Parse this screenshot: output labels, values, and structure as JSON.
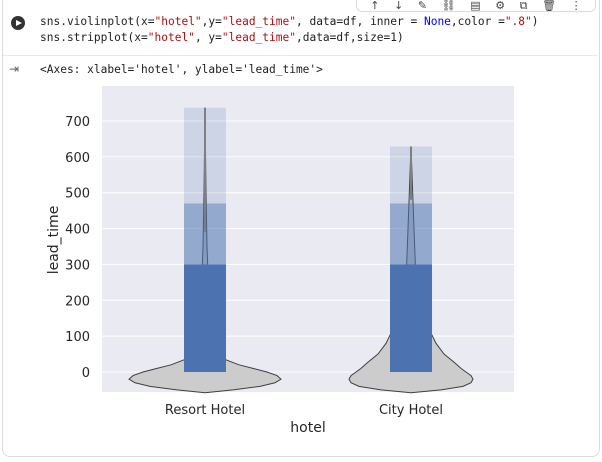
{
  "cell": {
    "code_line1": {
      "a": "sns.violinplot(x=",
      "b": "\"hotel\"",
      "c": ",y=",
      "d": "\"lead_time\"",
      "e": ", data=df, inner = ",
      "f": "None",
      "g": ",color =",
      "h": "\".8\"",
      "i": ")"
    },
    "code_line2": {
      "a": "sns.stripplot(x=",
      "b": "\"hotel\"",
      "c": ", y=",
      "d": "\"lead_time\"",
      "e": ",data=df,size=1)"
    },
    "output_text": "<Axes: xlabel='hotel', ylabel='lead_time'>"
  },
  "toolbar": {
    "icons": [
      "arrow-up-icon",
      "arrow-down-icon",
      "edit-icon",
      "link-icon",
      "comment-icon",
      "settings-icon",
      "mirror-icon",
      "delete-icon",
      "more-icon"
    ],
    "glyphs": [
      "↑",
      "↓",
      "✎",
      "⛓",
      "▤",
      "⚙",
      "⧉",
      "🗑",
      "⋮"
    ]
  },
  "colors": {
    "strip": "#4c72b0",
    "violin": "#cccccc",
    "axes_bg": "#eaeaf2",
    "grid": "#ffffff"
  },
  "chart_data": {
    "type": "violin",
    "xlabel": "hotel",
    "ylabel": "lead_time",
    "categories": [
      "Resort Hotel",
      "City Hotel"
    ],
    "yticks": [
      0,
      100,
      200,
      300,
      400,
      500,
      600,
      700
    ],
    "ylim": [
      -58,
      790
    ],
    "grid": true,
    "series": [
      {
        "category": "Resort Hotel",
        "max": 737,
        "dense_top": 470,
        "median_line_to": 390
      },
      {
        "category": "City Hotel",
        "max": 629,
        "dense_top": 470,
        "median_line_to": 480
      }
    ]
  }
}
